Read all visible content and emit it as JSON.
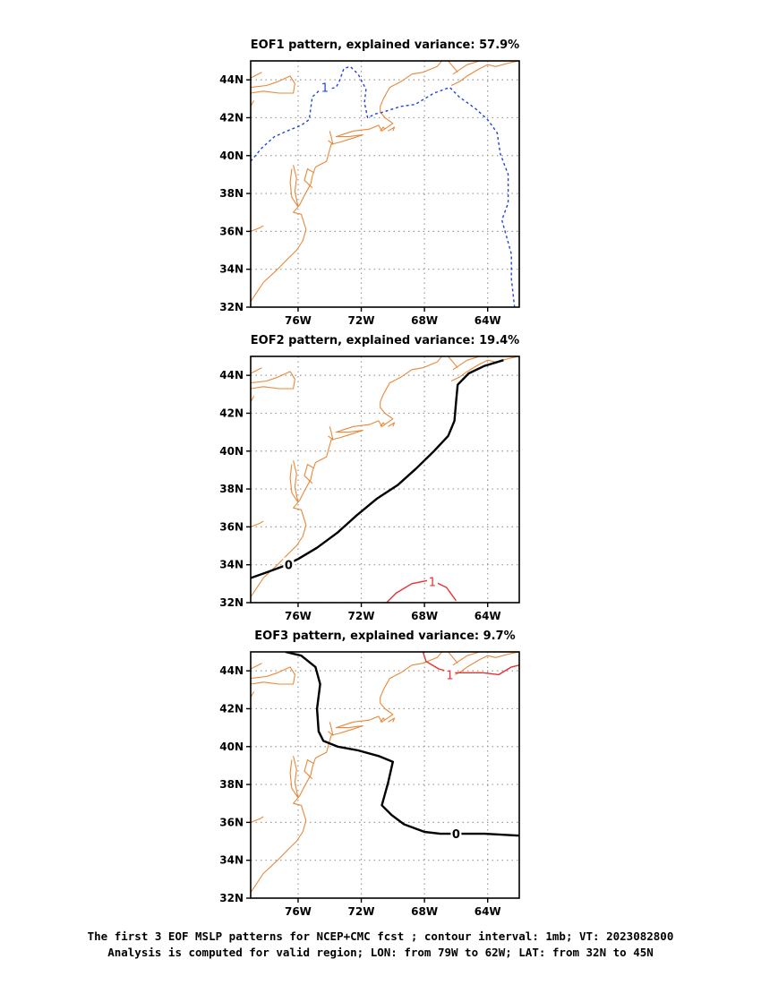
{
  "colors": {
    "coastline": "#e8883a",
    "negative_contour": "#2244dd",
    "positive_contour": "#e83030",
    "zero_contour": "#000000",
    "grid": "#999999"
  },
  "axes": {
    "lon_range": [
      -79,
      -62
    ],
    "lat_range": [
      32,
      45
    ],
    "x_ticks": [
      {
        "value": -76,
        "label": "76W"
      },
      {
        "value": -72,
        "label": "72W"
      },
      {
        "value": -68,
        "label": "68W"
      },
      {
        "value": -64,
        "label": "64W"
      }
    ],
    "y_ticks": [
      {
        "value": 32,
        "label": "32N"
      },
      {
        "value": 34,
        "label": "34N"
      },
      {
        "value": 36,
        "label": "36N"
      },
      {
        "value": 38,
        "label": "38N"
      },
      {
        "value": 40,
        "label": "40N"
      },
      {
        "value": 42,
        "label": "42N"
      },
      {
        "value": 44,
        "label": "44N"
      }
    ]
  },
  "panels": [
    {
      "title": "EOF1 pattern, explained variance: 57.9%",
      "contours": [
        {
          "level": "-1",
          "label": "1",
          "style": "dashed",
          "color": "#2244dd",
          "label_at": [
            -74.3,
            43.6
          ],
          "points": [
            [
              -79,
              39.7
            ],
            [
              -78.3,
              40.4
            ],
            [
              -77.5,
              41.0
            ],
            [
              -76.7,
              41.3
            ],
            [
              -75.8,
              41.6
            ],
            [
              -75.3,
              41.9
            ],
            [
              -75.2,
              42.5
            ],
            [
              -75.1,
              43.1
            ],
            [
              -74.7,
              43.4
            ],
            [
              -74.1,
              43.5
            ],
            [
              -73.6,
              43.6
            ],
            [
              -73.4,
              43.9
            ],
            [
              -73.1,
              44.6
            ],
            [
              -72.7,
              44.7
            ],
            [
              -72.2,
              44.3
            ],
            [
              -71.7,
              43.5
            ],
            [
              -71.8,
              42.8
            ],
            [
              -71.6,
              42.0
            ],
            [
              -71.1,
              42.2
            ],
            [
              -70.6,
              42.3
            ],
            [
              -69.5,
              42.6
            ],
            [
              -68.6,
              42.7
            ],
            [
              -67.4,
              43.3
            ],
            [
              -66.4,
              43.6
            ],
            [
              -65.8,
              43.1
            ],
            [
              -64.8,
              42.5
            ],
            [
              -64.0,
              41.9
            ],
            [
              -63.4,
              41.2
            ],
            [
              -63.2,
              40.1
            ],
            [
              -62.7,
              39.0
            ],
            [
              -62.7,
              37.5
            ],
            [
              -63.1,
              36.6
            ],
            [
              -62.8,
              35.7
            ],
            [
              -62.5,
              34.8
            ],
            [
              -62.5,
              33.5
            ],
            [
              -62.3,
              32.0
            ]
          ]
        }
      ]
    },
    {
      "title": "EOF2 pattern, explained variance: 19.4%",
      "contours": [
        {
          "level": "0",
          "label": "0",
          "style": "solid",
          "color": "#000000",
          "label_at": [
            -76.6,
            34.0
          ],
          "points": [
            [
              -79,
              33.3
            ],
            [
              -78.0,
              33.6
            ],
            [
              -77.0,
              33.9
            ],
            [
              -76.0,
              34.3
            ],
            [
              -74.8,
              34.9
            ],
            [
              -73.5,
              35.7
            ],
            [
              -72.3,
              36.6
            ],
            [
              -71.0,
              37.5
            ],
            [
              -69.7,
              38.2
            ],
            [
              -68.5,
              39.1
            ],
            [
              -67.4,
              40.0
            ],
            [
              -66.5,
              40.8
            ],
            [
              -66.1,
              41.6
            ],
            [
              -66.0,
              42.6
            ],
            [
              -65.9,
              43.5
            ],
            [
              -65.2,
              44.1
            ],
            [
              -64.2,
              44.5
            ],
            [
              -63.0,
              44.8
            ]
          ]
        },
        {
          "level": "1",
          "label": "1",
          "style": "solid",
          "color": "#e83030",
          "label_at": [
            -67.5,
            33.1
          ],
          "points": [
            [
              -70.4,
              32.0
            ],
            [
              -69.8,
              32.5
            ],
            [
              -68.8,
              33.0
            ],
            [
              -67.6,
              33.2
            ],
            [
              -66.6,
              32.8
            ],
            [
              -66.0,
              32.1
            ]
          ]
        }
      ]
    },
    {
      "title": "EOF3 pattern, explained variance: 9.7%",
      "contours": [
        {
          "level": "0",
          "label": "0",
          "style": "solid",
          "color": "#000000",
          "label_at": [
            -66.0,
            35.4
          ],
          "points": [
            [
              -76.8,
              45.0
            ],
            [
              -75.8,
              44.8
            ],
            [
              -74.9,
              44.2
            ],
            [
              -74.6,
              43.3
            ],
            [
              -74.8,
              42.0
            ],
            [
              -74.7,
              40.8
            ],
            [
              -74.4,
              40.3
            ],
            [
              -73.5,
              40.0
            ],
            [
              -72.2,
              39.8
            ],
            [
              -70.9,
              39.5
            ],
            [
              -70.0,
              39.2
            ],
            [
              -70.3,
              38.1
            ],
            [
              -70.7,
              36.9
            ],
            [
              -70.1,
              36.4
            ],
            [
              -69.3,
              35.9
            ],
            [
              -68.0,
              35.5
            ],
            [
              -67.0,
              35.4
            ],
            [
              -65.5,
              35.4
            ],
            [
              -64.2,
              35.4
            ],
            [
              -62.0,
              35.3
            ]
          ]
        },
        {
          "level": "1",
          "label": "1",
          "style": "solid",
          "color": "#e83030",
          "label_at": [
            -66.4,
            43.8
          ],
          "points": [
            [
              -68.1,
              45.0
            ],
            [
              -67.9,
              44.5
            ],
            [
              -67.1,
              44.1
            ],
            [
              -66.2,
              43.9
            ],
            [
              -65.4,
              43.9
            ],
            [
              -64.3,
              43.9
            ],
            [
              -63.3,
              43.8
            ],
            [
              -62.5,
              44.2
            ],
            [
              -62.0,
              44.3
            ]
          ]
        }
      ]
    }
  ],
  "coastlines": [
    [
      [
        -79,
        36.0
      ],
      [
        -78.4,
        36.2
      ],
      [
        -78.2,
        36.3
      ]
    ],
    [
      [
        -79,
        32.3
      ],
      [
        -78.2,
        33.3
      ],
      [
        -77.3,
        34.0
      ],
      [
        -76.6,
        34.6
      ],
      [
        -76.1,
        35.0
      ],
      [
        -75.7,
        35.5
      ],
      [
        -75.5,
        36.1
      ],
      [
        -75.8,
        36.9
      ],
      [
        -76.3,
        37.0
      ],
      [
        -75.9,
        37.4
      ],
      [
        -75.6,
        37.9
      ],
      [
        -75.2,
        38.5
      ],
      [
        -75.1,
        38.9
      ],
      [
        -74.9,
        39.4
      ],
      [
        -74.2,
        39.7
      ],
      [
        -74.0,
        40.3
      ],
      [
        -73.9,
        40.6
      ],
      [
        -73.4,
        40.7
      ],
      [
        -72.6,
        40.9
      ],
      [
        -71.9,
        41.1
      ],
      [
        -72.8,
        41.0
      ],
      [
        -73.6,
        41.0
      ],
      [
        -72.5,
        41.3
      ],
      [
        -71.5,
        41.4
      ],
      [
        -70.9,
        41.6
      ],
      [
        -70.7,
        41.3
      ],
      [
        -70.0,
        41.7
      ],
      [
        -70.5,
        42.0
      ],
      [
        -70.8,
        42.3
      ],
      [
        -70.8,
        42.6
      ],
      [
        -70.6,
        43.0
      ],
      [
        -70.2,
        43.6
      ],
      [
        -69.5,
        43.9
      ],
      [
        -68.8,
        44.3
      ],
      [
        -68.1,
        44.4
      ],
      [
        -67.2,
        44.7
      ],
      [
        -66.9,
        45.0
      ]
    ],
    [
      [
        -76.3,
        39.5
      ],
      [
        -76.1,
        38.8
      ],
      [
        -76.2,
        38.1
      ],
      [
        -76.0,
        37.3
      ],
      [
        -76.4,
        37.8
      ],
      [
        -76.5,
        38.6
      ],
      [
        -76.4,
        39.3
      ]
    ],
    [
      [
        -75.1,
        38.3
      ],
      [
        -75.6,
        38.7
      ],
      [
        -75.4,
        39.3
      ],
      [
        -75.0,
        39.1
      ]
    ],
    [
      [
        -74.1,
        40.8
      ],
      [
        -73.8,
        40.6
      ],
      [
        -73.9,
        41.0
      ],
      [
        -74.0,
        41.3
      ]
    ],
    [
      [
        -70.0,
        41.3
      ],
      [
        -69.9,
        41.5
      ],
      [
        -70.3,
        41.3
      ]
    ],
    [
      [
        -70.8,
        41.3
      ],
      [
        -70.6,
        41.5
      ],
      [
        -70.5,
        41.4
      ]
    ],
    [
      [
        -79,
        43.6
      ],
      [
        -78.0,
        43.7
      ],
      [
        -77.3,
        43.9
      ],
      [
        -76.5,
        44.2
      ],
      [
        -76.2,
        43.8
      ],
      [
        -76.3,
        43.3
      ],
      [
        -77.2,
        43.3
      ],
      [
        -78.2,
        43.4
      ],
      [
        -79,
        43.3
      ]
    ],
    [
      [
        -79,
        42.6
      ],
      [
        -78.8,
        42.9
      ]
    ],
    [
      [
        -79,
        44.1
      ],
      [
        -78.3,
        44.4
      ]
    ],
    [
      [
        -66.2,
        44.3
      ],
      [
        -65.3,
        44.8
      ],
      [
        -64.5,
        45.0
      ]
    ],
    [
      [
        -66.3,
        43.7
      ],
      [
        -65.8,
        43.9
      ],
      [
        -65.3,
        44.2
      ],
      [
        -64.5,
        44.6
      ],
      [
        -64.0,
        44.8
      ],
      [
        -63.5,
        44.7
      ],
      [
        -62.6,
        44.9
      ],
      [
        -62.0,
        45.0
      ]
    ],
    [
      [
        -65.9,
        44.4
      ],
      [
        -66.2,
        44.7
      ],
      [
        -66.5,
        45.0
      ]
    ]
  ],
  "caption": {
    "line1": "The first 3 EOF MSLP patterns for NCEP+CMC fcst ; contour interval: 1mb; VT: 2023082800",
    "line2": "Analysis is computed for valid region; LON: from 79W to 62W; LAT: from 32N to 45N"
  }
}
